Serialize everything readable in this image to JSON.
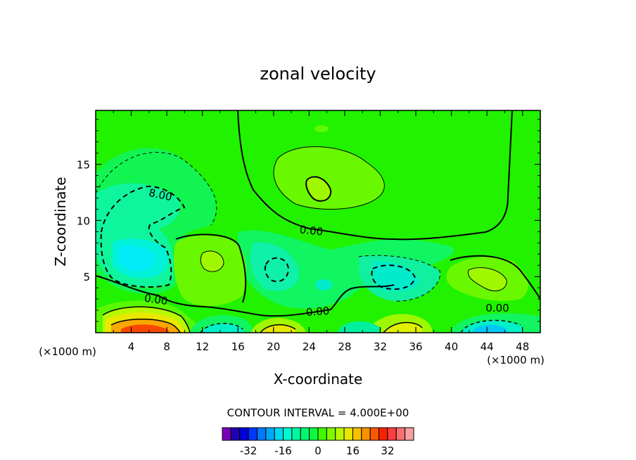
{
  "chart_data": {
    "type": "contour",
    "title": "zonal velocity",
    "xlabel": "X-coordinate",
    "ylabel": "Z-coordinate",
    "x_unit_label_left": "(×1000 m)",
    "x_unit_label_right": "(×1000 m)",
    "xlim": [
      0,
      50
    ],
    "ylim": [
      0,
      19.8
    ],
    "xticks": [
      4,
      8,
      12,
      16,
      20,
      24,
      28,
      32,
      36,
      40,
      44,
      48
    ],
    "yticks": [
      5,
      10,
      15
    ],
    "contour_interval_label": "CONTOUR INTERVAL = 4.000E+00",
    "contour_labels": [
      {
        "text": "8.00",
        "x": 7,
        "y": 12.6
      },
      {
        "text": "0.00",
        "x": 24.5,
        "y": 9.1
      },
      {
        "text": "0.00",
        "x": 6.5,
        "y": 3.1
      },
      {
        "text": "0.00",
        "x": 24.5,
        "y": 1.9
      },
      {
        "text": "0.00",
        "x": 44.5,
        "y": 2.2
      }
    ],
    "colorbar": {
      "colors": [
        "#7a00b8",
        "#2200b0",
        "#0000d8",
        "#0038f8",
        "#0078f8",
        "#00a8f8",
        "#00d8f0",
        "#00f8d0",
        "#00f8a0",
        "#00f870",
        "#10f840",
        "#40f800",
        "#80f800",
        "#b8f800",
        "#e8e800",
        "#f8c000",
        "#f89000",
        "#f85800",
        "#f82000",
        "#f84040",
        "#f87070",
        "#f8a0a0"
      ],
      "tick_labels": [
        "-32",
        "-16",
        "0",
        "16",
        "32"
      ],
      "tick_values": [
        -32,
        -16,
        0,
        16,
        32
      ],
      "range": [
        -44,
        44
      ]
    }
  }
}
